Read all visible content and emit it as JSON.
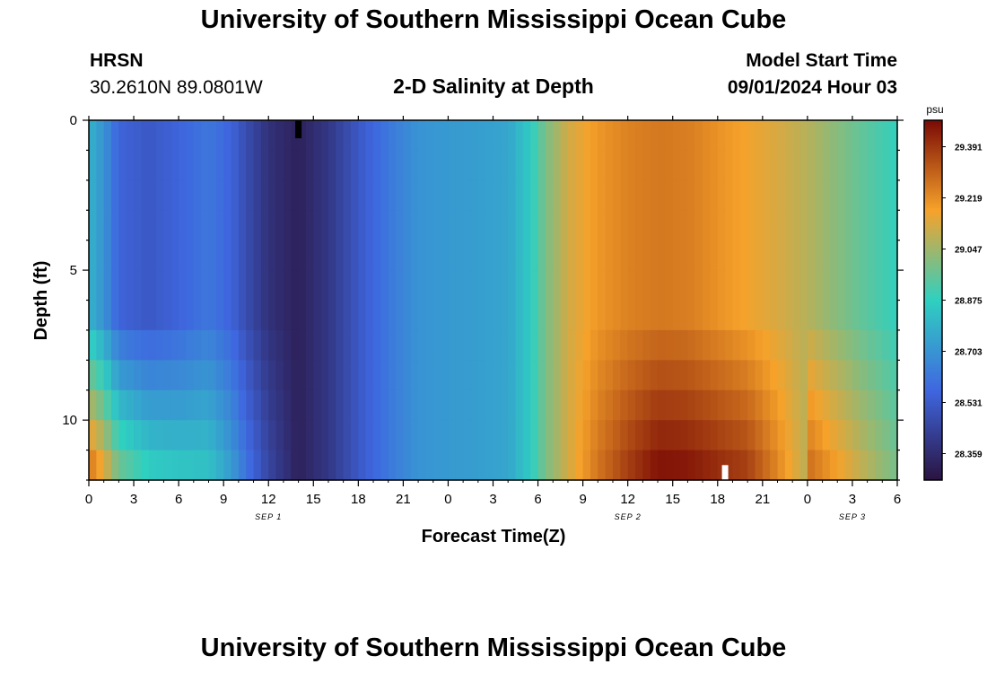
{
  "header": {
    "title": "University of Southern Mississippi Ocean Cube",
    "station": "HRSN",
    "coords": "30.2610N  89.0801W",
    "subtitle": "2-D Salinity at Depth",
    "model_start_label": "Model Start Time",
    "model_start_value": "09/01/2024 Hour 03"
  },
  "footer": {
    "title": "University of Southern Mississippi Ocean Cube"
  },
  "colors": {
    "min": "#2a1340",
    "mid_low": "#3f67e0",
    "mid": "#2fd0c0",
    "mid_high": "#f6a22a",
    "max": "#7a0a05"
  },
  "chart_data": {
    "type": "heatmap",
    "title": "2-D Salinity at Depth",
    "xlabel": "Forecast Time(Z)",
    "ylabel": "Depth (ft)",
    "x_range_hours": [
      0,
      54
    ],
    "x_tick_labels": [
      "0",
      "3",
      "6",
      "9",
      "12",
      "15",
      "18",
      "21",
      "0",
      "3",
      "6",
      "9",
      "12",
      "15",
      "18",
      "21",
      "0",
      "3",
      "6"
    ],
    "date_labels": [
      {
        "text": "SEP 1",
        "hour": 12
      },
      {
        "text": "SEP 2",
        "hour": 36
      },
      {
        "text": "SEP 3",
        "hour": 51
      }
    ],
    "y_range_ft": [
      0,
      12
    ],
    "y_ticks": [
      0,
      5,
      10
    ],
    "colorbar": {
      "unit": "psu",
      "ticks": [
        29.391,
        29.219,
        29.047,
        28.875,
        28.703,
        28.531,
        28.359
      ],
      "min": 28.27,
      "max": 29.48
    },
    "depth_rows_ft": [
      0.5,
      1.5,
      2.5,
      3.5,
      4.5,
      5.5,
      6.5,
      7.5,
      8.5,
      9.5,
      10.5,
      11.5
    ],
    "salinity_profile_upper": [
      [
        0,
        28.79
      ],
      [
        1,
        28.7
      ],
      [
        2,
        28.56
      ],
      [
        4,
        28.52
      ],
      [
        6,
        28.56
      ],
      [
        8,
        28.62
      ],
      [
        9.5,
        28.56
      ],
      [
        10.5,
        28.48
      ],
      [
        12,
        28.38
      ],
      [
        14,
        28.32
      ],
      [
        16,
        28.4
      ],
      [
        18,
        28.52
      ],
      [
        20,
        28.62
      ],
      [
        22,
        28.7
      ],
      [
        24,
        28.72
      ],
      [
        26,
        28.73
      ],
      [
        28,
        28.75
      ],
      [
        29.5,
        28.86
      ],
      [
        30.5,
        28.99
      ],
      [
        32,
        29.12
      ],
      [
        34,
        29.2
      ],
      [
        36,
        29.24
      ],
      [
        38,
        29.26
      ],
      [
        40,
        29.25
      ],
      [
        42,
        29.21
      ],
      [
        44,
        29.17
      ],
      [
        46,
        29.13
      ],
      [
        48,
        29.08
      ],
      [
        50,
        29.01
      ],
      [
        52,
        28.94
      ],
      [
        54,
        28.88
      ]
    ],
    "annotations": [
      {
        "type": "marker",
        "color": "black",
        "hour": 14,
        "depth_ft": [
          0,
          0.6
        ]
      },
      {
        "type": "marker",
        "color": "white",
        "hour": 42.5,
        "depth_ft": [
          11.5,
          12
        ]
      }
    ]
  }
}
